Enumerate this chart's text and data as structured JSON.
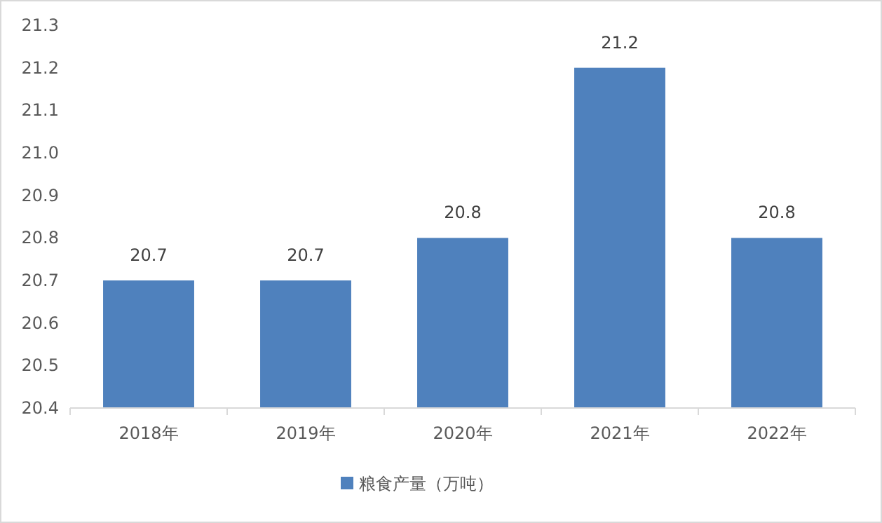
{
  "chart_data": {
    "type": "bar",
    "categories": [
      "2018年",
      "2019年",
      "2020年",
      "2021年",
      "2022年"
    ],
    "series": [
      {
        "name": "粮食产量（万吨）",
        "color": "#4f81bd",
        "values": [
          20.7,
          20.7,
          20.8,
          21.2,
          20.8
        ]
      }
    ],
    "ylim": [
      20.4,
      21.3
    ],
    "yticks": [
      20.4,
      20.5,
      20.6,
      20.7,
      20.8,
      20.9,
      {
        "value": 21.0,
        "label": "21.0"
      },
      21.1,
      21.2,
      21.3
    ],
    "data_labels": true,
    "legend": "bottom"
  }
}
